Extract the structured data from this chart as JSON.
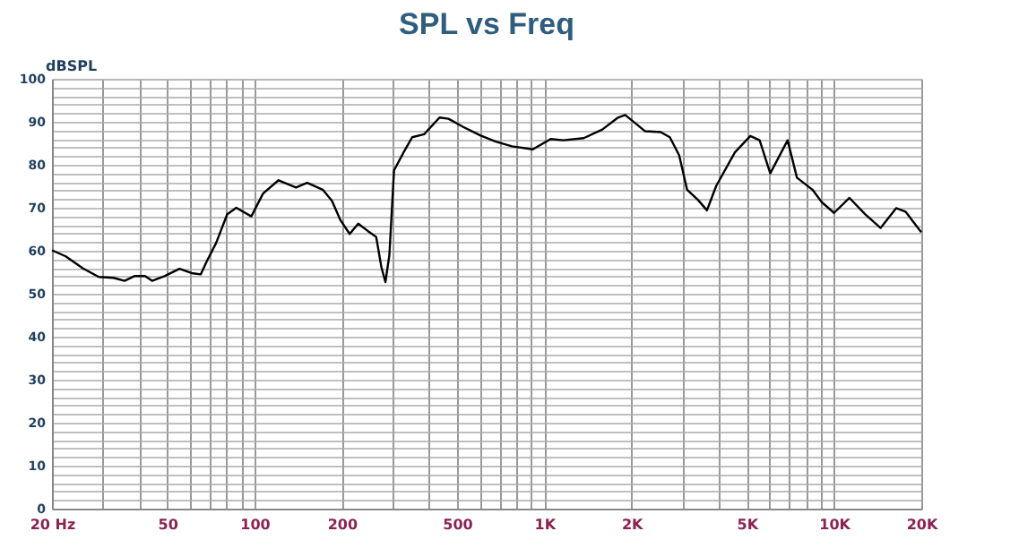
{
  "chart_data": {
    "type": "line",
    "title": "SPL vs Freq",
    "ylabel": "dBSPL",
    "x": [
      20,
      22.3,
      25.6,
      29,
      32.6,
      35.6,
      38.5,
      41.9,
      44.3,
      48.9,
      55.1,
      60.6,
      65.2,
      68.5,
      73.7,
      80.5,
      86.5,
      97.5,
      107,
      121,
      139,
      152,
      172,
      185,
      198,
      213,
      228,
      246,
      263,
      274,
      283,
      292,
      303,
      327,
      350,
      385,
      435,
      467,
      525,
      603,
      680,
      773,
      913,
      1052,
      1163,
      1368,
      1586,
      1788,
      1902,
      2230,
      2521,
      2712,
      2921,
      3110,
      3384,
      3642,
      3922,
      4548,
      5142,
      5536,
      6023,
      6914,
      7445,
      8423,
      9069,
      10000,
      11300,
      12790,
      14480,
      16380,
      17640,
      20000
    ],
    "series": [
      {
        "color": "#000000",
        "values": [
          60.1,
          58.7,
          55.9,
          53.9,
          53.7,
          53,
          54.1,
          54.1,
          53,
          54.1,
          55.8,
          54.8,
          54.5,
          57.6,
          61.8,
          68.5,
          70,
          68,
          73.3,
          76.4,
          74.7,
          75.8,
          74.2,
          71.6,
          67.1,
          63.9,
          66.3,
          64.6,
          63.2,
          56.2,
          52.7,
          59,
          78.7,
          82.9,
          86.4,
          87.1,
          91,
          90.7,
          88.8,
          86.8,
          85.4,
          84.3,
          83.6,
          86,
          85.7,
          86.2,
          88.2,
          90.9,
          91.6,
          87.8,
          87.6,
          86.4,
          82.2,
          74.2,
          71.9,
          69.4,
          75.1,
          82.9,
          86.7,
          85.7,
          78,
          85.7,
          77,
          74.2,
          71.3,
          68.8,
          72.3,
          68.5,
          65.3,
          69.9,
          69.1,
          64.3
        ]
      }
    ],
    "log": "x",
    "xlim": [
      20,
      20000
    ],
    "ylim": [
      0,
      100
    ],
    "xticks": [
      {
        "value": 20,
        "label": "20 Hz"
      },
      {
        "value": 30,
        "label": null
      },
      {
        "value": 40,
        "label": null
      },
      50,
      {
        "value": 60,
        "label": null
      },
      {
        "value": 70,
        "label": null
      },
      {
        "value": 80,
        "label": null
      },
      {
        "value": 90,
        "label": null
      },
      100,
      200,
      {
        "value": 300,
        "label": null
      },
      {
        "value": 400,
        "label": null
      },
      500,
      {
        "value": 600,
        "label": null
      },
      {
        "value": 700,
        "label": null
      },
      {
        "value": 800,
        "label": null
      },
      {
        "value": 900,
        "label": null
      },
      {
        "value": 1000,
        "label": "1K"
      },
      {
        "value": 2000,
        "label": "2K"
      },
      {
        "value": 3000,
        "label": null
      },
      {
        "value": 4000,
        "label": null
      },
      {
        "value": 5000,
        "label": "5K"
      },
      {
        "value": 6000,
        "label": null
      },
      {
        "value": 7000,
        "label": null
      },
      {
        "value": 8000,
        "label": null
      },
      {
        "value": 9000,
        "label": null
      },
      {
        "value": 10000,
        "label": "10K"
      },
      {
        "value": 20000,
        "label": "20K"
      }
    ],
    "yticks": [
      0,
      {
        "value": 2,
        "label": null
      },
      {
        "value": 4,
        "label": null
      },
      {
        "value": 6,
        "label": null
      },
      {
        "value": 8,
        "label": null
      },
      10,
      {
        "value": 12,
        "label": null
      },
      {
        "value": 14,
        "label": null
      },
      {
        "value": 16,
        "label": null
      },
      {
        "value": 18,
        "label": null
      },
      20,
      {
        "value": 22,
        "label": null
      },
      {
        "value": 24,
        "label": null
      },
      {
        "value": 26,
        "label": null
      },
      {
        "value": 28,
        "label": null
      },
      30,
      {
        "value": 32,
        "label": null
      },
      {
        "value": 34,
        "label": null
      },
      {
        "value": 36,
        "label": null
      },
      {
        "value": 38,
        "label": null
      },
      40,
      {
        "value": 42,
        "label": null
      },
      {
        "value": 44,
        "label": null
      },
      {
        "value": 46,
        "label": null
      },
      {
        "value": 48,
        "label": null
      },
      50,
      {
        "value": 52,
        "label": null
      },
      {
        "value": 54,
        "label": null
      },
      {
        "value": 56,
        "label": null
      },
      {
        "value": 58,
        "label": null
      },
      60,
      {
        "value": 62,
        "label": null
      },
      {
        "value": 64,
        "label": null
      },
      {
        "value": 66,
        "label": null
      },
      {
        "value": 68,
        "label": null
      },
      70,
      {
        "value": 72,
        "label": null
      },
      {
        "value": 74,
        "label": null
      },
      {
        "value": 76,
        "label": null
      },
      {
        "value": 78,
        "label": null
      },
      80,
      {
        "value": 82,
        "label": null
      },
      {
        "value": 84,
        "label": null
      },
      {
        "value": 86,
        "label": null
      },
      {
        "value": 88,
        "label": null
      },
      90,
      {
        "value": 92,
        "label": null
      },
      {
        "value": 94,
        "label": null
      },
      {
        "value": 96,
        "label": null
      },
      {
        "value": 98,
        "label": null
      },
      100
    ],
    "grid": true,
    "legend": false,
    "marker": "none",
    "line_style": "solid"
  }
}
